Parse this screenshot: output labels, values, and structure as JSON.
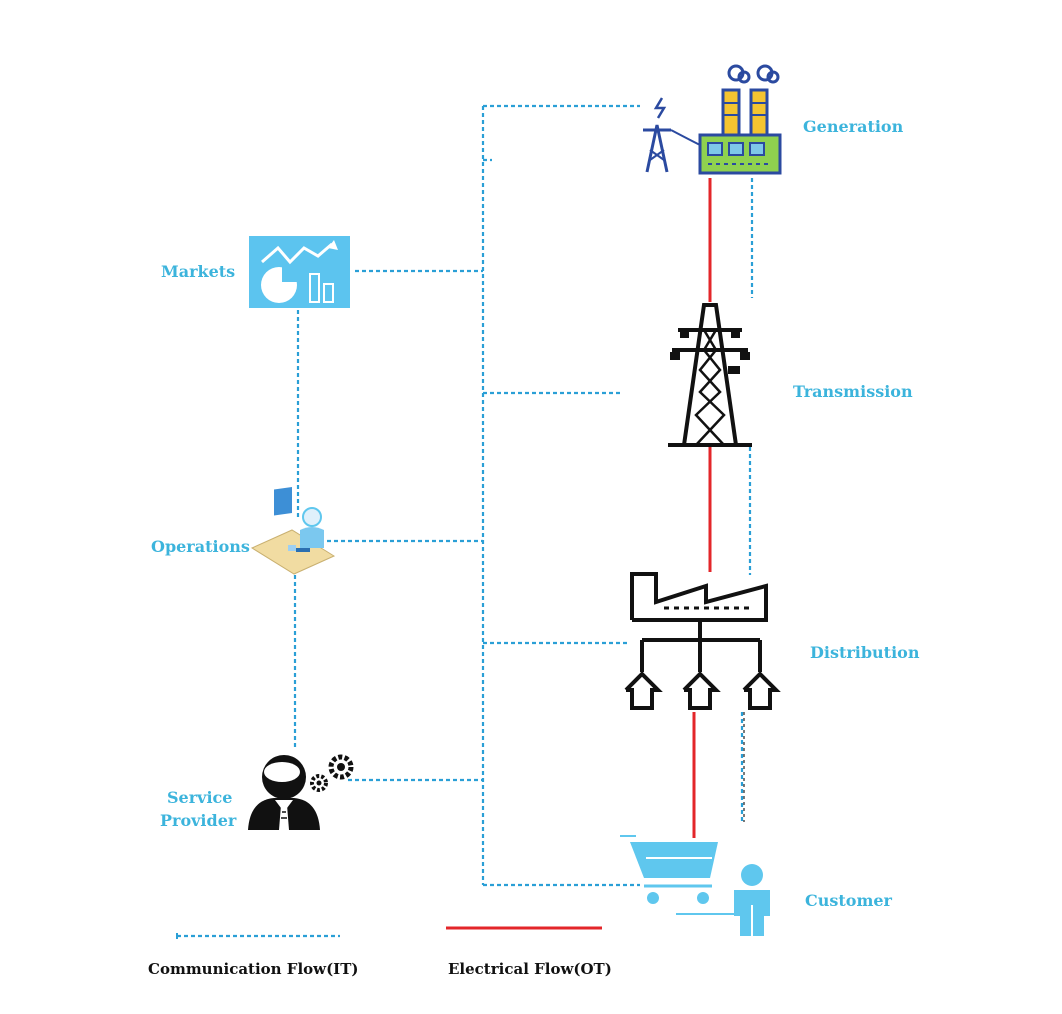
{
  "nodes": {
    "generation": "Generation",
    "transmission": "Transmission",
    "distribution": "Distribution",
    "customer": "Customer",
    "markets": "Markets",
    "operations": "Operations",
    "service_provider_line1": "Service",
    "service_provider_line2": "Provider"
  },
  "legend": {
    "it_label": "Communication Flow(IT)",
    "ot_label": "Electrical Flow(OT)"
  },
  "colors": {
    "it_flow": "#2a9fd6",
    "ot_flow": "#e3262a",
    "label": "#3cb4dc"
  },
  "icons": [
    "power-plant-icon",
    "transmission-tower-icon",
    "distribution-icon",
    "shopping-cart-icon",
    "person-icon",
    "market-chart-icon",
    "operator-icon",
    "service-provider-icon"
  ]
}
